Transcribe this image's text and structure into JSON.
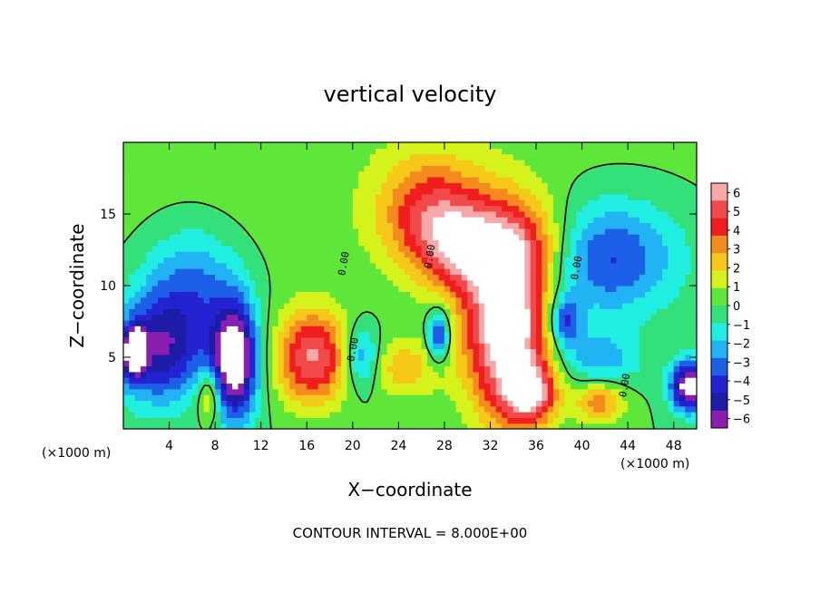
{
  "chart_data": {
    "type": "heatmap",
    "title": "vertical velocity",
    "xlabel": "X−coordinate",
    "ylabel": "Z−coordinate",
    "x_unit": "(×1000 m)",
    "y_unit": "(×1000 m)",
    "xlim": [
      0,
      50
    ],
    "ylim": [
      0,
      20
    ],
    "x_ticks": [
      4,
      8,
      12,
      16,
      20,
      24,
      28,
      32,
      36,
      40,
      44,
      48
    ],
    "y_ticks": [
      5,
      10,
      15
    ],
    "x_tick_labels": [
      "4",
      "8",
      "12",
      "16",
      "20",
      "24",
      "28",
      "32",
      "36",
      "40",
      "44",
      "48"
    ],
    "y_tick_labels": [
      "5",
      "10",
      "15"
    ],
    "colorbar": {
      "min": -6,
      "max": 6,
      "labels": [
        "6",
        "5",
        "4",
        "3",
        "2",
        "1",
        "0",
        "−1",
        "−2",
        "−3",
        "−4",
        "−5",
        "−6"
      ],
      "colors": [
        "#f7a9a9",
        "#f24a4a",
        "#f01e1e",
        "#f58a1e",
        "#f5c819",
        "#d6f21c",
        "#5ee63a",
        "#33e07a",
        "#20eee0",
        "#22b3f5",
        "#1e5fe8",
        "#2323d2",
        "#1c1ca6",
        "#8a1eb0"
      ],
      "above_max": "#ffffff",
      "below_min": "#ffffff"
    },
    "contour_label": "0.00",
    "contour_interval_text": "CONTOUR INTERVAL = 8.000E+00",
    "grid": false,
    "field_features": [
      {
        "x": 17,
        "z": 17.5,
        "value": 0.5,
        "sx": 22,
        "sz": 6
      },
      {
        "x": 3,
        "z": 5.5,
        "value": -4.8,
        "sx": 2.8,
        "sz": 2.6
      },
      {
        "x": 9.7,
        "z": 4.8,
        "value": -7.5,
        "sx": 1.4,
        "sz": 2.8
      },
      {
        "x": 1,
        "z": 5.4,
        "value": -7.2,
        "sx": 0.6,
        "sz": 1.1
      },
      {
        "x": 7.5,
        "z": 2.3,
        "value": 3.2,
        "sx": 0.7,
        "sz": 1.3
      },
      {
        "x": 16.5,
        "z": 5,
        "value": 5.2,
        "sx": 2.2,
        "sz": 2.3
      },
      {
        "x": 27,
        "z": 15,
        "value": 4.2,
        "sx": 3.2,
        "sz": 2.8
      },
      {
        "x": 33.5,
        "z": 7.5,
        "value": 7.8,
        "sx": 2.6,
        "sz": 4.6
      },
      {
        "x": 29.5,
        "z": 12.5,
        "value": 3.2,
        "sx": 2.5,
        "sz": 2
      },
      {
        "x": 35,
        "z": 13,
        "value": 2.8,
        "sx": 3.2,
        "sz": 2.2
      },
      {
        "x": 27.5,
        "z": 6.5,
        "value": -4.2,
        "sx": 0.7,
        "sz": 1.3
      },
      {
        "x": 20.8,
        "z": 5,
        "value": -3.2,
        "sx": 1.1,
        "sz": 1.6
      },
      {
        "x": 38.5,
        "z": 7.5,
        "value": -3.8,
        "sx": 1,
        "sz": 1.3
      },
      {
        "x": 41.5,
        "z": 4.8,
        "value": -2.3,
        "sx": 2.5,
        "sz": 1.5
      },
      {
        "x": 42,
        "z": 12,
        "value": -3.8,
        "sx": 4.5,
        "sz": 2.8
      },
      {
        "x": 49.3,
        "z": 3,
        "value": -7,
        "sx": 1.1,
        "sz": 1.2
      },
      {
        "x": 41.5,
        "z": 2,
        "value": 3.2,
        "sx": 1.6,
        "sz": 1.1
      },
      {
        "x": 24.5,
        "z": 4.3,
        "value": 2.2,
        "sx": 2.3,
        "sz": 1.5
      },
      {
        "x": 35.5,
        "z": 2.5,
        "value": 5,
        "sx": 1.5,
        "sz": 1.4
      },
      {
        "x": 6,
        "z": 10,
        "value": -2.8,
        "sx": 3,
        "sz": 3
      }
    ]
  }
}
